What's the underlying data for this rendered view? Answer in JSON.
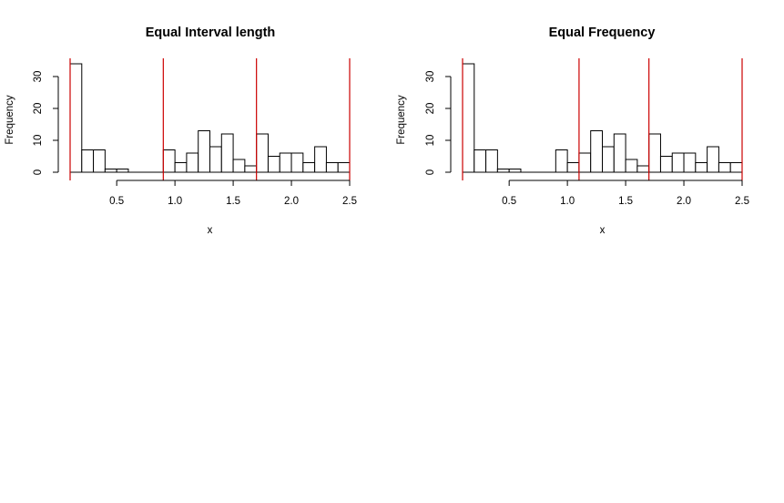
{
  "colors": {
    "break_line": "#cc0000",
    "bar_fill": "#ffffff",
    "bar_stroke": "#000000",
    "background": "#ffffff"
  },
  "chart_data": [
    {
      "type": "bar",
      "title": "Equal Interval length",
      "xlabel": "x",
      "ylabel": "Frequency",
      "bin_width": 0.1,
      "bins": [
        {
          "start": 0.1,
          "end": 0.2,
          "count": 34
        },
        {
          "start": 0.2,
          "end": 0.3,
          "count": 7
        },
        {
          "start": 0.3,
          "end": 0.4,
          "count": 7
        },
        {
          "start": 0.4,
          "end": 0.5,
          "count": 1
        },
        {
          "start": 0.5,
          "end": 0.6,
          "count": 1
        },
        {
          "start": 0.6,
          "end": 0.7,
          "count": 0
        },
        {
          "start": 0.7,
          "end": 0.8,
          "count": 0
        },
        {
          "start": 0.8,
          "end": 0.9,
          "count": 0
        },
        {
          "start": 0.9,
          "end": 1.0,
          "count": 7
        },
        {
          "start": 1.0,
          "end": 1.1,
          "count": 3
        },
        {
          "start": 1.1,
          "end": 1.2,
          "count": 6
        },
        {
          "start": 1.2,
          "end": 1.3,
          "count": 13
        },
        {
          "start": 1.3,
          "end": 1.4,
          "count": 8
        },
        {
          "start": 1.4,
          "end": 1.5,
          "count": 12
        },
        {
          "start": 1.5,
          "end": 1.6,
          "count": 4
        },
        {
          "start": 1.6,
          "end": 1.7,
          "count": 2
        },
        {
          "start": 1.7,
          "end": 1.8,
          "count": 12
        },
        {
          "start": 1.8,
          "end": 1.9,
          "count": 5
        },
        {
          "start": 1.9,
          "end": 2.0,
          "count": 6
        },
        {
          "start": 2.0,
          "end": 2.1,
          "count": 6
        },
        {
          "start": 2.1,
          "end": 2.2,
          "count": 3
        },
        {
          "start": 2.2,
          "end": 2.3,
          "count": 8
        },
        {
          "start": 2.3,
          "end": 2.4,
          "count": 3
        },
        {
          "start": 2.4,
          "end": 2.5,
          "count": 3
        }
      ],
      "breaks": [
        0.1,
        0.9,
        1.7,
        2.5
      ],
      "xlim": [
        0.1,
        2.5
      ],
      "ylim": [
        0,
        34
      ],
      "xticks": [
        {
          "value": 0.5,
          "label": "0.5"
        },
        {
          "value": 1.0,
          "label": "1.0"
        },
        {
          "value": 1.5,
          "label": "1.5"
        },
        {
          "value": 2.0,
          "label": "2.0"
        },
        {
          "value": 2.5,
          "label": "2.5"
        }
      ],
      "yticks": [
        {
          "value": 0,
          "label": "0"
        },
        {
          "value": 10,
          "label": "10"
        },
        {
          "value": 20,
          "label": "20"
        },
        {
          "value": 30,
          "label": "30"
        }
      ],
      "grid": false,
      "legend": "none"
    },
    {
      "type": "bar",
      "title": "Equal Frequency",
      "xlabel": "x",
      "ylabel": "Frequency",
      "bin_width": 0.1,
      "bins": [
        {
          "start": 0.1,
          "end": 0.2,
          "count": 34
        },
        {
          "start": 0.2,
          "end": 0.3,
          "count": 7
        },
        {
          "start": 0.3,
          "end": 0.4,
          "count": 7
        },
        {
          "start": 0.4,
          "end": 0.5,
          "count": 1
        },
        {
          "start": 0.5,
          "end": 0.6,
          "count": 1
        },
        {
          "start": 0.6,
          "end": 0.7,
          "count": 0
        },
        {
          "start": 0.7,
          "end": 0.8,
          "count": 0
        },
        {
          "start": 0.8,
          "end": 0.9,
          "count": 0
        },
        {
          "start": 0.9,
          "end": 1.0,
          "count": 7
        },
        {
          "start": 1.0,
          "end": 1.1,
          "count": 3
        },
        {
          "start": 1.1,
          "end": 1.2,
          "count": 6
        },
        {
          "start": 1.2,
          "end": 1.3,
          "count": 13
        },
        {
          "start": 1.3,
          "end": 1.4,
          "count": 8
        },
        {
          "start": 1.4,
          "end": 1.5,
          "count": 12
        },
        {
          "start": 1.5,
          "end": 1.6,
          "count": 4
        },
        {
          "start": 1.6,
          "end": 1.7,
          "count": 2
        },
        {
          "start": 1.7,
          "end": 1.8,
          "count": 12
        },
        {
          "start": 1.8,
          "end": 1.9,
          "count": 5
        },
        {
          "start": 1.9,
          "end": 2.0,
          "count": 6
        },
        {
          "start": 2.0,
          "end": 2.1,
          "count": 6
        },
        {
          "start": 2.1,
          "end": 2.2,
          "count": 3
        },
        {
          "start": 2.2,
          "end": 2.3,
          "count": 8
        },
        {
          "start": 2.3,
          "end": 2.4,
          "count": 3
        },
        {
          "start": 2.4,
          "end": 2.5,
          "count": 3
        }
      ],
      "breaks": [
        0.1,
        1.1,
        1.7,
        2.5
      ],
      "xlim": [
        0.1,
        2.5
      ],
      "ylim": [
        0,
        34
      ],
      "xticks": [
        {
          "value": 0.5,
          "label": "0.5"
        },
        {
          "value": 1.0,
          "label": "1.0"
        },
        {
          "value": 1.5,
          "label": "1.5"
        },
        {
          "value": 2.0,
          "label": "2.0"
        },
        {
          "value": 2.5,
          "label": "2.5"
        }
      ],
      "yticks": [
        {
          "value": 0,
          "label": "0"
        },
        {
          "value": 10,
          "label": "10"
        },
        {
          "value": 20,
          "label": "20"
        },
        {
          "value": 30,
          "label": "30"
        }
      ],
      "grid": false,
      "legend": "none"
    }
  ]
}
